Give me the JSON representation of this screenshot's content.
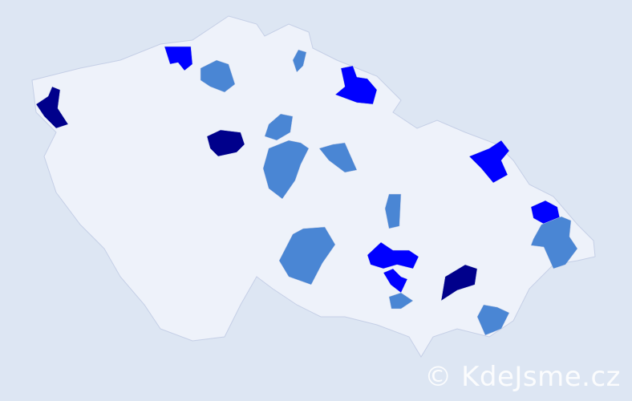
{
  "map": {
    "colors": {
      "background": "#dde6f3",
      "land": "#eef2fa",
      "border": "#c5cfe6",
      "level_high": "#00008b",
      "level_mid": "#0000ff",
      "level_low": "#4a86d4"
    },
    "highlighted_regions": [
      {
        "level": "high"
      },
      {
        "level": "high"
      },
      {
        "level": "high"
      },
      {
        "level": "mid"
      },
      {
        "level": "mid"
      },
      {
        "level": "mid"
      },
      {
        "level": "mid"
      },
      {
        "level": "mid"
      },
      {
        "level": "mid"
      },
      {
        "level": "low"
      },
      {
        "level": "low"
      },
      {
        "level": "low"
      },
      {
        "level": "low"
      },
      {
        "level": "low"
      },
      {
        "level": "low"
      },
      {
        "level": "low"
      },
      {
        "level": "low"
      },
      {
        "level": "low"
      },
      {
        "level": "low"
      }
    ]
  },
  "watermark": "© KdeJsme.cz"
}
